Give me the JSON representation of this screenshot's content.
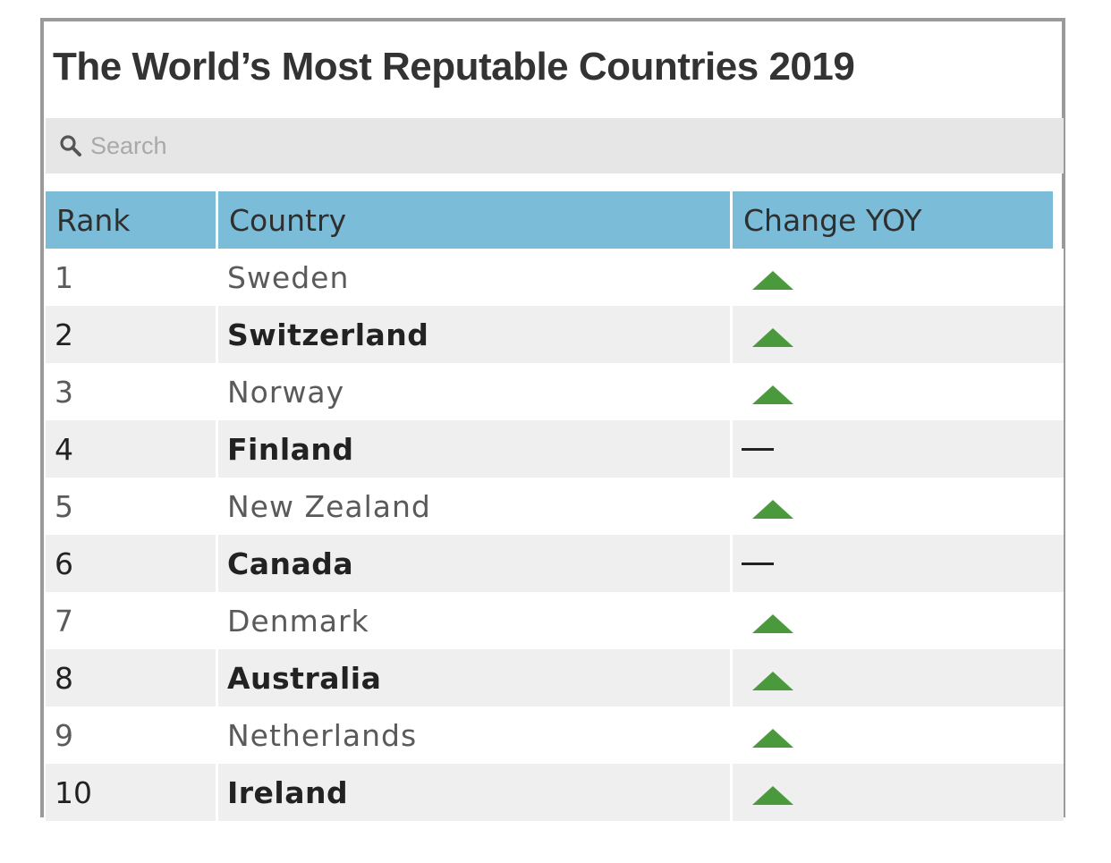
{
  "title": "The World’s Most Reputable Countries 2019",
  "search": {
    "placeholder": "Search",
    "value": ""
  },
  "table": {
    "columns": [
      "Rank",
      "Country",
      "Change YOY"
    ],
    "rows": [
      {
        "rank": "1",
        "country": "Sweden",
        "change": "up"
      },
      {
        "rank": "2",
        "country": "Switzerland",
        "change": "up"
      },
      {
        "rank": "3",
        "country": "Norway",
        "change": "up"
      },
      {
        "rank": "4",
        "country": "Finland",
        "change": "flat"
      },
      {
        "rank": "5",
        "country": "New Zealand",
        "change": "up"
      },
      {
        "rank": "6",
        "country": "Canada",
        "change": "flat"
      },
      {
        "rank": "7",
        "country": "Denmark",
        "change": "up"
      },
      {
        "rank": "8",
        "country": "Australia",
        "change": "up"
      },
      {
        "rank": "9",
        "country": "Netherlands",
        "change": "up"
      },
      {
        "rank": "10",
        "country": "Ireland",
        "change": "up"
      }
    ]
  },
  "icons": {
    "search": "search-icon",
    "up": "up-arrow-icon",
    "flat": "no-change-dash-icon"
  },
  "colors": {
    "header_bg": "#7bbcd8",
    "up_arrow": "#4a9a3d",
    "search_bg": "#e6e6e6",
    "row_stripe": "#efefef"
  }
}
